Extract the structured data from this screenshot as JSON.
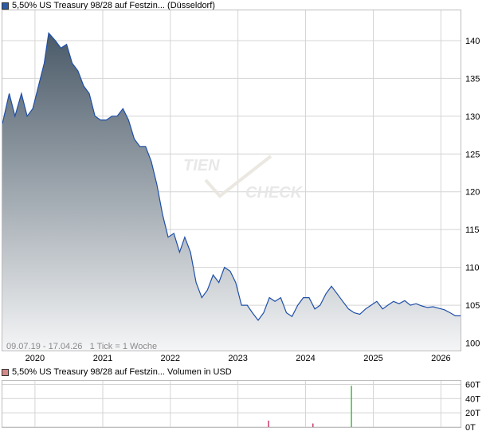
{
  "colors": {
    "price_line": "#1f4fa8",
    "price_swatch": "#2b5aa8",
    "volume_swatch": "#d48888",
    "volume_bar_green": "#3fbf3f",
    "volume_bar_red": "#cc3b6a",
    "grid": "#d4d4d4",
    "area_top": "#4a5a68",
    "area_bottom": "#f4f5f6"
  },
  "header": {
    "price_legend": "5,50% US Treasury 98/28 auf Festzin... (Düsseldorf)",
    "volume_legend": "5,50% US Treasury 98/28 auf Festzin... Volumen in USD"
  },
  "watermark": {
    "line1": "TIEN",
    "line2": "CHECK"
  },
  "footer_note": "09.07.19 - 17.04.26   1 Tick = 1 Woche",
  "chart_data": [
    {
      "type": "area",
      "title": "",
      "xlabel": "",
      "ylabel": "",
      "x_ticks": [
        "2020",
        "2021",
        "2022",
        "2023",
        "2024",
        "2025",
        "2026"
      ],
      "y_ticks": [
        100,
        105,
        110,
        115,
        120,
        125,
        130,
        135,
        140
      ],
      "xlim": [
        "2019-07-09",
        "2026-04-17"
      ],
      "ylim": [
        99,
        144
      ],
      "grid": true,
      "x": [
        "2019-07-09",
        "2019-08-15",
        "2019-09-15",
        "2019-10-20",
        "2019-11-20",
        "2019-12-20",
        "2020-01-20",
        "2020-02-20",
        "2020-03-15",
        "2020-04-20",
        "2020-05-20",
        "2020-06-20",
        "2020-07-20",
        "2020-08-20",
        "2020-09-20",
        "2020-10-20",
        "2020-11-20",
        "2020-12-20",
        "2021-01-20",
        "2021-02-20",
        "2021-03-20",
        "2021-04-20",
        "2021-05-20",
        "2021-06-20",
        "2021-07-20",
        "2021-08-20",
        "2021-09-20",
        "2021-10-20",
        "2021-11-20",
        "2021-12-20",
        "2022-01-20",
        "2022-02-20",
        "2022-03-20",
        "2022-04-20",
        "2022-05-20",
        "2022-06-20",
        "2022-07-20",
        "2022-08-20",
        "2022-09-20",
        "2022-10-20",
        "2022-11-20",
        "2022-12-20",
        "2023-01-20",
        "2023-02-20",
        "2023-03-20",
        "2023-04-20",
        "2023-05-20",
        "2023-06-20",
        "2023-07-20",
        "2023-08-20",
        "2023-09-20",
        "2023-10-20",
        "2023-11-20",
        "2023-12-20",
        "2024-01-20",
        "2024-02-20",
        "2024-03-20",
        "2024-04-20",
        "2024-05-20",
        "2024-06-20",
        "2024-07-20",
        "2024-08-20",
        "2024-09-20",
        "2024-10-20",
        "2024-11-20",
        "2024-12-20",
        "2025-01-20",
        "2025-02-20",
        "2025-03-20",
        "2025-04-20",
        "2025-05-20",
        "2025-06-20",
        "2025-07-20",
        "2025-08-20",
        "2025-09-20",
        "2025-10-20",
        "2025-11-20",
        "2025-12-20",
        "2026-01-20",
        "2026-02-20",
        "2026-03-20",
        "2026-04-17"
      ],
      "series": [
        {
          "values": [
            129,
            133,
            130,
            133,
            130,
            131,
            134,
            137,
            141,
            140,
            139,
            139.5,
            137,
            136,
            134,
            133,
            130,
            129.5,
            129.5,
            130,
            130,
            131,
            129.5,
            127,
            126,
            126,
            124,
            121,
            117,
            114,
            114.5,
            112,
            114,
            112,
            108,
            106,
            107,
            109,
            108,
            110,
            109.5,
            108,
            105,
            105,
            104,
            103,
            104,
            106,
            105.5,
            106,
            104,
            103.5,
            105,
            106,
            106,
            104.5,
            105,
            106.5,
            107.5,
            106.5,
            105.5,
            104.5,
            104,
            103.8,
            104.5,
            105,
            105.5,
            104.5,
            105,
            105.5,
            105.2,
            105.6,
            105,
            105.2,
            104.9,
            104.7,
            104.8,
            104.6,
            104.4,
            104,
            103.6,
            103.6
          ]
        }
      ]
    },
    {
      "type": "bar",
      "title": "",
      "xlabel": "",
      "ylabel": "",
      "y_ticks": [
        "0T",
        "20T",
        "40T",
        "60T"
      ],
      "ylim": [
        0,
        65
      ],
      "grid": true,
      "x": [
        "2023-06-15",
        "2024-02-10",
        "2024-09-05"
      ],
      "series": [
        {
          "values": [
            9,
            5,
            58
          ],
          "colors": [
            "red",
            "red",
            "green"
          ]
        }
      ]
    }
  ]
}
